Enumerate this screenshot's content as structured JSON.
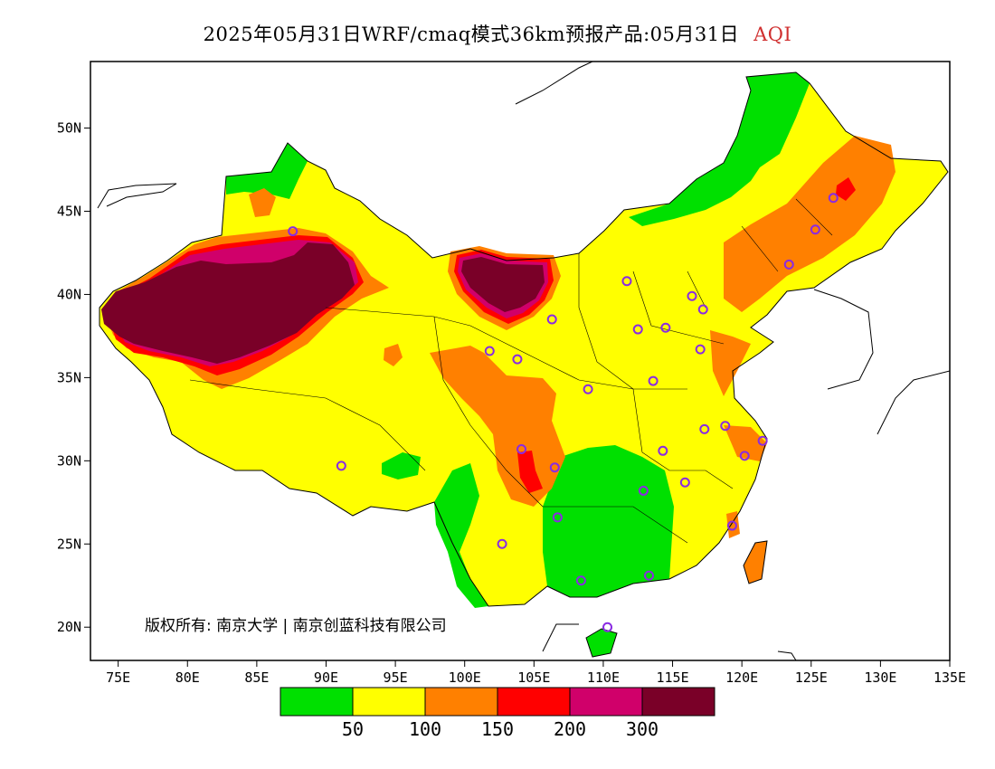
{
  "title": {
    "main": "2025年05月31日WRF/cmaq模式36km预报产品:05月31日",
    "variable": "AQI",
    "variable_color": "#d03030"
  },
  "map": {
    "lon_range": [
      73,
      135
    ],
    "lat_range": [
      18,
      54
    ],
    "x_ticks": [
      "75E",
      "80E",
      "85E",
      "90E",
      "95E",
      "100E",
      "105E",
      "110E",
      "115E",
      "120E",
      "125E",
      "130E",
      "135E"
    ],
    "y_ticks": [
      "20N",
      "25N",
      "30N",
      "35N",
      "40N",
      "45N",
      "50N"
    ],
    "copyright": "版权所有: 南京大学 | 南京创蓝科技有限公司",
    "stations": [
      [
        87.6,
        43.8
      ],
      [
        91.1,
        29.7
      ],
      [
        101.8,
        36.6
      ],
      [
        103.8,
        36.1
      ],
      [
        106.3,
        38.5
      ],
      [
        104.1,
        30.7
      ],
      [
        106.5,
        29.6
      ],
      [
        106.7,
        26.6
      ],
      [
        102.7,
        25.0
      ],
      [
        108.4,
        22.8
      ],
      [
        110.3,
        20.0
      ],
      [
        113.3,
        23.1
      ],
      [
        112.9,
        28.2
      ],
      [
        115.9,
        28.7
      ],
      [
        114.3,
        30.6
      ],
      [
        117.3,
        31.9
      ],
      [
        118.8,
        32.1
      ],
      [
        120.2,
        30.3
      ],
      [
        121.5,
        31.2
      ],
      [
        119.3,
        26.1
      ],
      [
        113.6,
        34.8
      ],
      [
        117.0,
        36.7
      ],
      [
        114.5,
        38.0
      ],
      [
        112.5,
        37.9
      ],
      [
        116.4,
        39.9
      ],
      [
        117.2,
        39.1
      ],
      [
        111.7,
        40.8
      ],
      [
        123.4,
        41.8
      ],
      [
        125.3,
        43.9
      ],
      [
        126.6,
        45.8
      ],
      [
        108.9,
        34.3
      ]
    ]
  },
  "legend": {
    "colors": [
      "#00e000",
      "#ffff00",
      "#ff8000",
      "#ff0000",
      "#d0006a",
      "#7a0028"
    ],
    "labels": [
      "50",
      "100",
      "150",
      "200",
      "300"
    ]
  }
}
